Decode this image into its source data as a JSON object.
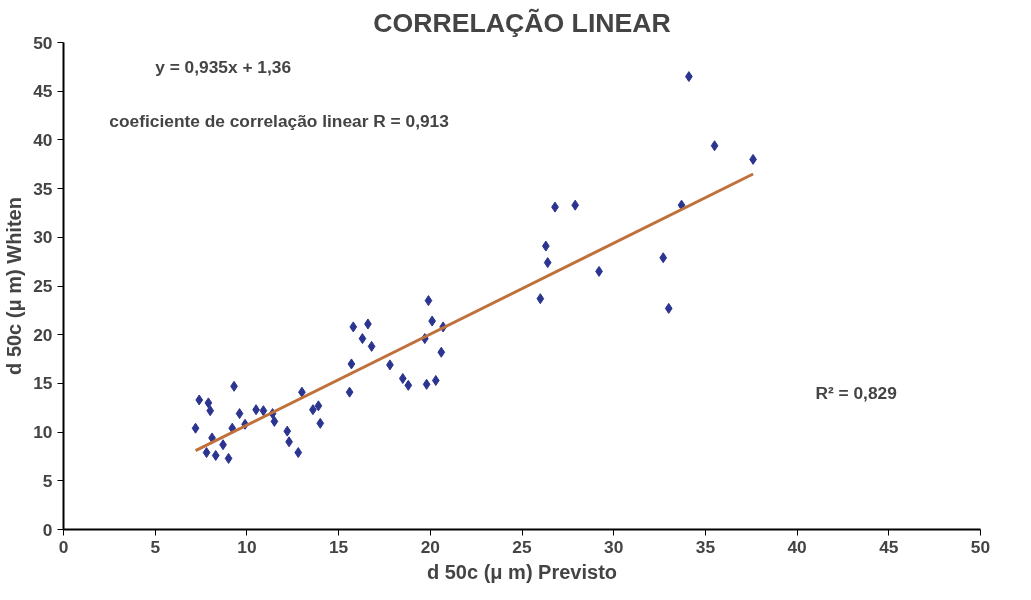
{
  "chart_data": {
    "type": "scatter",
    "title": "CORRELAÇÃO LINEAR",
    "xlabel": "d 50c (μ m) Previsto",
    "ylabel": "d 50c (μ m) Whiten",
    "xlim": [
      0,
      50
    ],
    "ylim": [
      0,
      50
    ],
    "xticks": [
      0,
      5,
      10,
      15,
      20,
      25,
      30,
      35,
      40,
      45,
      50
    ],
    "yticks": [
      0,
      5,
      10,
      15,
      20,
      25,
      30,
      35,
      40,
      45,
      50
    ],
    "grid": false,
    "annotations": [
      "y = 0,935x + 1,36",
      "coeficiente de correlação linear R = 0,913",
      "R² = 0,829"
    ],
    "series": [
      {
        "marker": "diamond",
        "color": "#2b3590",
        "x": [
          7.4,
          7.9,
          8.0,
          7.2,
          9.3,
          9.6,
          9.2,
          9.9,
          8.1,
          8.7,
          7.8,
          8.3,
          9.0,
          10.5,
          10.9,
          11.4,
          11.5,
          12.2,
          12.3,
          12.8,
          13.0,
          13.6,
          13.9,
          14.0,
          15.8,
          16.6,
          16.3,
          16.8,
          15.7,
          15.6,
          17.8,
          18.5,
          18.8,
          19.9,
          20.1,
          20.7,
          19.7,
          20.6,
          19.8,
          20.3,
          34.1,
          35.5,
          37.6,
          33.7,
          26.8,
          27.9,
          26.3,
          26.4,
          29.2,
          26.0,
          32.7,
          33.0
        ],
        "values": [
          13.3,
          13.0,
          12.2,
          10.4,
          14.7,
          11.9,
          10.4,
          10.8,
          9.4,
          8.7,
          7.9,
          7.6,
          7.3,
          12.3,
          12.2,
          11.9,
          11.1,
          10.1,
          9.0,
          7.9,
          14.1,
          12.3,
          12.7,
          10.9,
          20.8,
          21.1,
          19.6,
          18.8,
          17.0,
          14.1,
          16.9,
          15.5,
          14.8,
          23.5,
          21.4,
          20.8,
          19.6,
          18.2,
          14.9,
          15.3,
          46.5,
          39.4,
          38.0,
          33.3,
          33.1,
          33.3,
          29.1,
          27.4,
          26.5,
          23.7,
          27.9,
          22.7
        ]
      },
      {
        "type": "line",
        "color": "#c0703a",
        "x": [
          7.2,
          37.6
        ],
        "values": [
          8.1,
          36.5
        ]
      }
    ]
  }
}
